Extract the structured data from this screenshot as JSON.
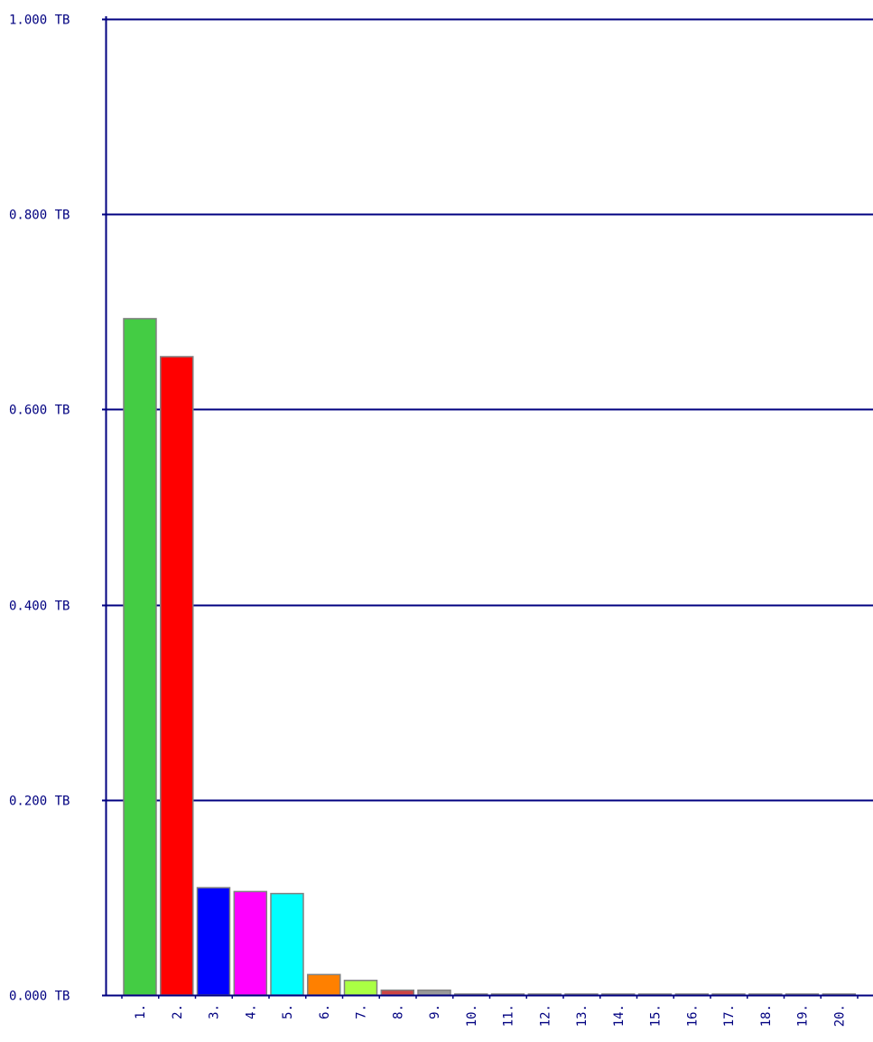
{
  "chart_data": {
    "type": "bar",
    "categories": [
      "1.",
      "2.",
      "3.",
      "4.",
      "5.",
      "6.",
      "7.",
      "8.",
      "9.",
      "10.",
      "11.",
      "12.",
      "13.",
      "14.",
      "15.",
      "16.",
      "17.",
      "18.",
      "19.",
      "20."
    ],
    "values": [
      0.693,
      0.654,
      0.11,
      0.106,
      0.104,
      0.021,
      0.015,
      0.005,
      0.005,
      0.001,
      0.001,
      0.001,
      0.001,
      0.001,
      0.001,
      0.001,
      0.001,
      0.001,
      0.001,
      0.001
    ],
    "colors": [
      "#44cc44",
      "#ff0000",
      "#0000ff",
      "#ff00ff",
      "#00ffff",
      "#ff8000",
      "#aaff44",
      "#cc4444",
      "#999999",
      "#999999",
      "#999999",
      "#999999",
      "#999999",
      "#999999",
      "#999999",
      "#999999",
      "#999999",
      "#999999",
      "#999999",
      "#999999"
    ],
    "ylim": [
      0,
      1.0
    ],
    "yticks": [
      {
        "value": 0.0,
        "label": "0.000 TB"
      },
      {
        "value": 0.2,
        "label": "0.200 TB"
      },
      {
        "value": 0.4,
        "label": "0.400 TB"
      },
      {
        "value": 0.6,
        "label": "0.600 TB"
      },
      {
        "value": 0.8,
        "label": "0.800 TB"
      },
      {
        "value": 1.0,
        "label": "1.000 TB"
      }
    ],
    "grid": true,
    "axis_color": "#000080",
    "bar_outline": "#808080",
    "title": "",
    "xlabel": "",
    "ylabel": ""
  }
}
